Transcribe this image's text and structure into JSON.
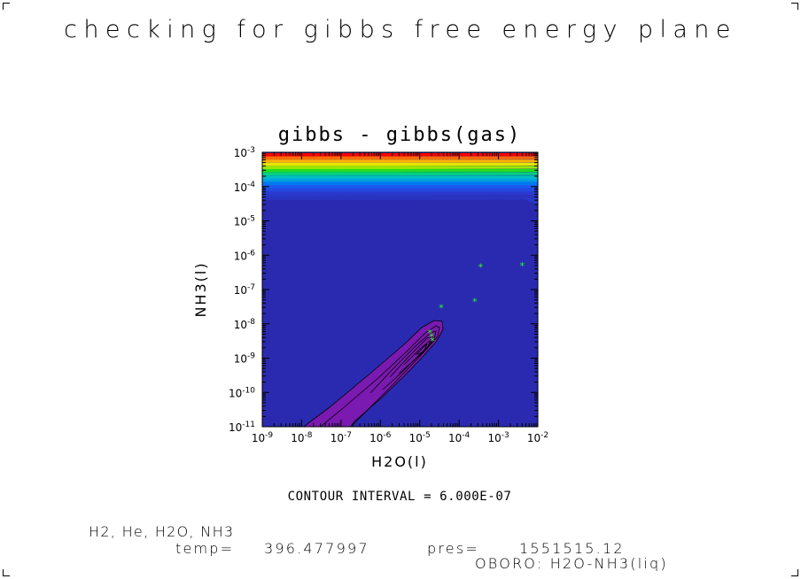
{
  "page": {
    "title": "checking for gibbs free energy plane",
    "species": "H2, He, H2O, NH3",
    "temp_label": "temp=",
    "temp_value": "396.477997",
    "pres_label": "pres=",
    "pres_value": "1551515.12",
    "run_label": "OBORO: H2O-NH3(liq)"
  },
  "chart_data": {
    "type": "contour",
    "title": "gibbs - gibbs(gas)",
    "xlabel": "H2O(l)",
    "ylabel": "NH3(l)",
    "xscale": "log",
    "yscale": "log",
    "xlim": [
      1e-09,
      0.01
    ],
    "ylim": [
      1e-11,
      0.001
    ],
    "x_tick_labels": [
      {
        "base": "10",
        "exp": "-9"
      },
      {
        "base": "10",
        "exp": "-8"
      },
      {
        "base": "10",
        "exp": "-7"
      },
      {
        "base": "10",
        "exp": "-6"
      },
      {
        "base": "10",
        "exp": "-5"
      },
      {
        "base": "10",
        "exp": "-4"
      },
      {
        "base": "10",
        "exp": "-3"
      },
      {
        "base": "10",
        "exp": "-2"
      }
    ],
    "y_tick_labels": [
      {
        "base": "10",
        "exp": "-11"
      },
      {
        "base": "10",
        "exp": "-10"
      },
      {
        "base": "10",
        "exp": "-9"
      },
      {
        "base": "10",
        "exp": "-8"
      },
      {
        "base": "10",
        "exp": "-7"
      },
      {
        "base": "10",
        "exp": "-6"
      },
      {
        "base": "10",
        "exp": "-5"
      },
      {
        "base": "10",
        "exp": "-4"
      },
      {
        "base": "10",
        "exp": "-3"
      }
    ],
    "contour_interval_text": "CONTOUR INTERVAL = 6.000E-07",
    "background_color": "#2a2ab0",
    "low_region_color": "#7a1ab0",
    "marker_color": "#22ff22",
    "top_band_colors": [
      "#ff0000",
      "#ff6a00",
      "#ffb000",
      "#e6e600",
      "#9be600",
      "#22dd22",
      "#00d080",
      "#00c0c0",
      "#00a0e0",
      "#0078f0",
      "#1a5cf0",
      "#2248e0",
      "#2a3ad0",
      "#2a32c0"
    ],
    "points": [
      {
        "x": 1.8e-05,
        "y": 5.5e-09
      },
      {
        "x": 2e-05,
        "y": 4.2e-09
      },
      {
        "x": 2.1e-05,
        "y": 3.2e-09
      },
      {
        "x": 3.5e-05,
        "y": 3e-08
      },
      {
        "x": 0.00025,
        "y": 4.5e-08
      },
      {
        "x": 0.00035,
        "y": 4.5e-07
      },
      {
        "x": 0.004,
        "y": 5e-07
      }
    ]
  }
}
